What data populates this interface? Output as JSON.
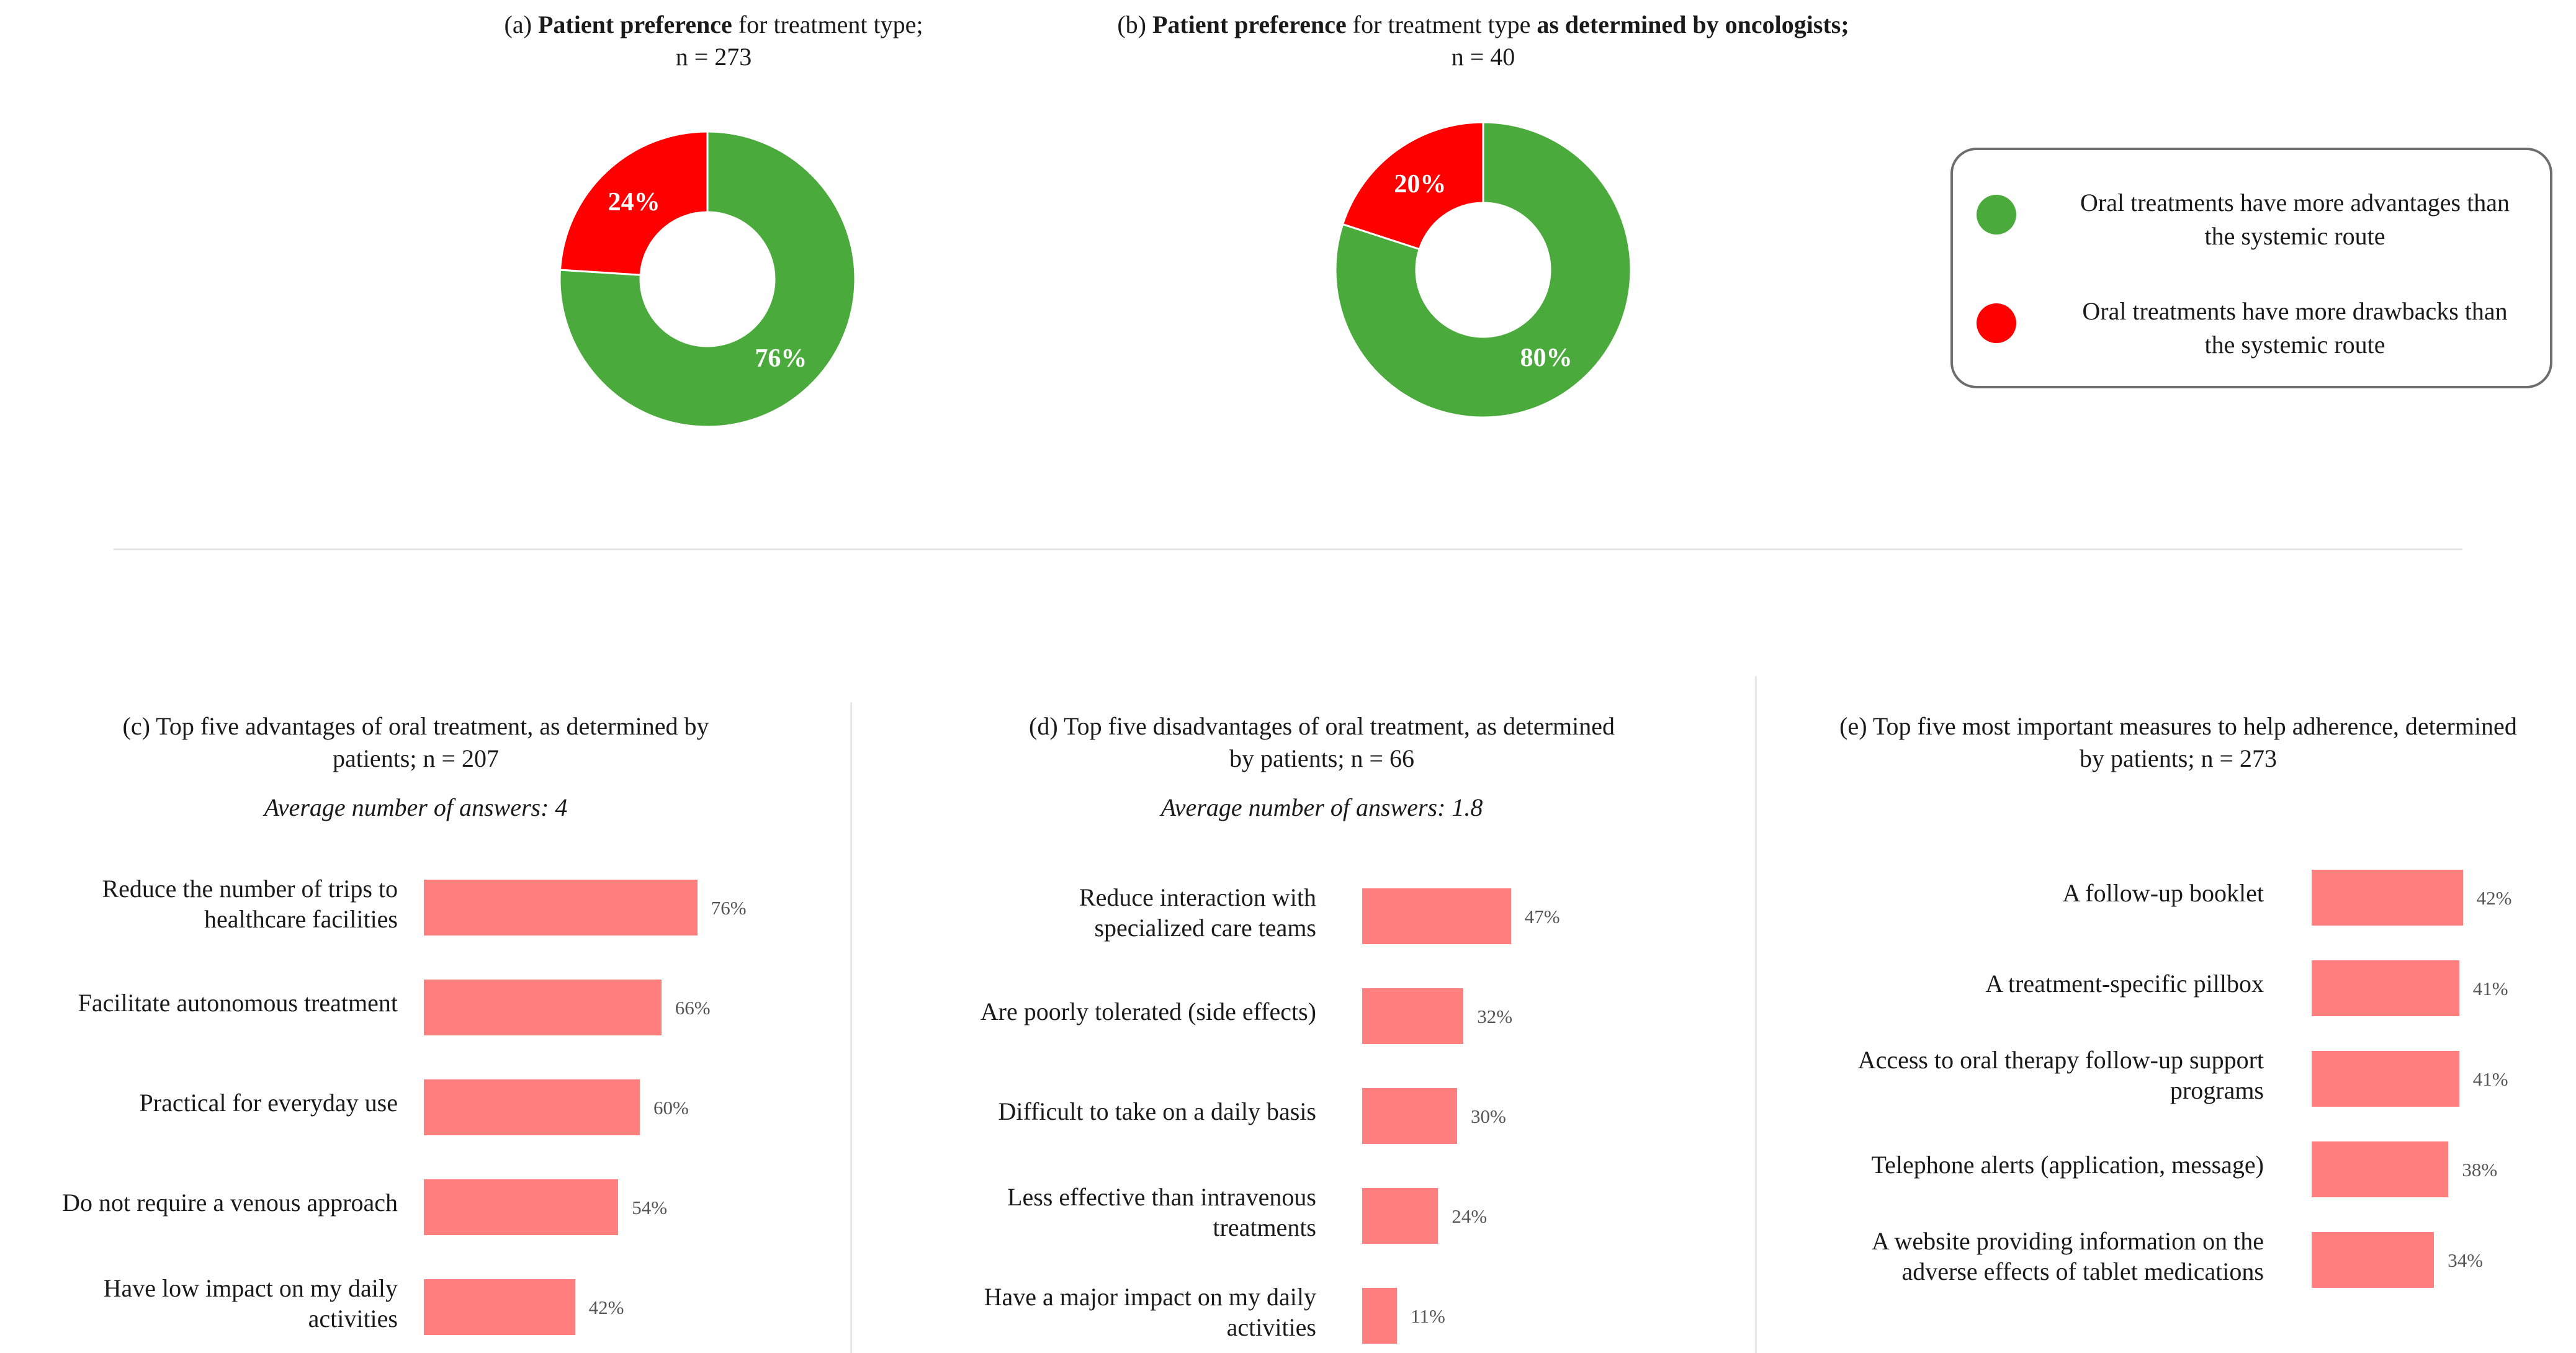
{
  "colors": {
    "green": "#4aab3c",
    "red": "#ff0000",
    "bar": "#ff7f7e",
    "legend_border": "#6e6e6e",
    "divider": "#e6e6e6"
  },
  "panel_a": {
    "title_prefix": "(a) ",
    "title_bold": "Patient preference",
    "title_rest": " for treatment type;",
    "title_line2": "n = 273"
  },
  "panel_b": {
    "title_prefix": "(b) ",
    "title_bold": "Patient preference",
    "title_rest": " for treatment type ",
    "title_bold2": "as determined by oncologists;",
    "title_line2": "n = 40"
  },
  "legend": {
    "items": [
      {
        "line1": "Oral treatments have more advantages than",
        "line2": "the systemic route",
        "color": "#4aab3c"
      },
      {
        "line1": "Oral treatments have more drawbacks than",
        "line2": "the systemic route",
        "color": "#ff0000"
      }
    ]
  },
  "panel_c": {
    "title_line1": "(c) Top five advantages of oral treatment, as determined by",
    "title_line2": "patients; n = 207",
    "subtitle": "Average number of answers: 4"
  },
  "panel_d": {
    "title_line1": "(d) Top five disadvantages of oral treatment, as determined",
    "title_line2": "by patients; n = 66",
    "subtitle": "Average number of answers: 1.8"
  },
  "panel_e": {
    "title_line1": "(e) Top five most important measures to help adherence, determined",
    "title_line2": "by patients; n = 273"
  },
  "chart_data": [
    {
      "type": "pie",
      "id": "a",
      "donut": true,
      "slices": [
        {
          "label": "Oral treatments have more advantages than the systemic route",
          "value": 76,
          "text": "76%",
          "color": "#4aab3c"
        },
        {
          "label": "Oral treatments have more drawbacks than the systemic route",
          "value": 24,
          "text": "24%",
          "color": "#ff0000"
        }
      ]
    },
    {
      "type": "pie",
      "id": "b",
      "donut": true,
      "slices": [
        {
          "label": "Oral treatments have more advantages than the systemic route",
          "value": 80,
          "text": "80%",
          "color": "#4aab3c"
        },
        {
          "label": "Oral treatments have more drawbacks than the systemic route",
          "value": 20,
          "text": "20%",
          "color": "#ff0000"
        }
      ]
    },
    {
      "type": "bar",
      "id": "c",
      "orientation": "horizontal",
      "xlim": [
        0,
        100
      ],
      "categories": [
        [
          "Reduce the number of trips to",
          "healthcare facilities"
        ],
        [
          "Facilitate autonomous treatment"
        ],
        [
          "Practical for everyday use"
        ],
        [
          "Do not require a venous approach"
        ],
        [
          "Have low impact on my daily",
          "activities"
        ]
      ],
      "values": [
        76,
        66,
        60,
        54,
        42
      ],
      "labels": [
        "76%",
        "66%",
        "60%",
        "54%",
        "42%"
      ]
    },
    {
      "type": "bar",
      "id": "d",
      "orientation": "horizontal",
      "xlim": [
        0,
        100
      ],
      "categories": [
        [
          "Reduce interaction with",
          "specialized care teams"
        ],
        [
          "Are poorly tolerated (side effects)"
        ],
        [
          "Difficult to take on a daily basis"
        ],
        [
          "Less effective than intravenous",
          "treatments"
        ],
        [
          "Have a major impact on my daily",
          "activities"
        ]
      ],
      "values": [
        47,
        32,
        30,
        24,
        11
      ],
      "labels": [
        "47%",
        "32%",
        "30%",
        "24%",
        "11%"
      ]
    },
    {
      "type": "bar",
      "id": "e",
      "orientation": "horizontal",
      "xlim": [
        0,
        100
      ],
      "categories": [
        [
          "A follow-up booklet"
        ],
        [
          "A treatment-specific pillbox"
        ],
        [
          "Access to oral therapy follow-up support",
          "programs"
        ],
        [
          "Telephone alerts (application, message)"
        ],
        [
          "A website providing information on the",
          "adverse effects of tablet medications"
        ]
      ],
      "values": [
        42,
        41,
        41,
        38,
        34
      ],
      "labels": [
        "42%",
        "41%",
        "41%",
        "38%",
        "34%"
      ]
    }
  ]
}
